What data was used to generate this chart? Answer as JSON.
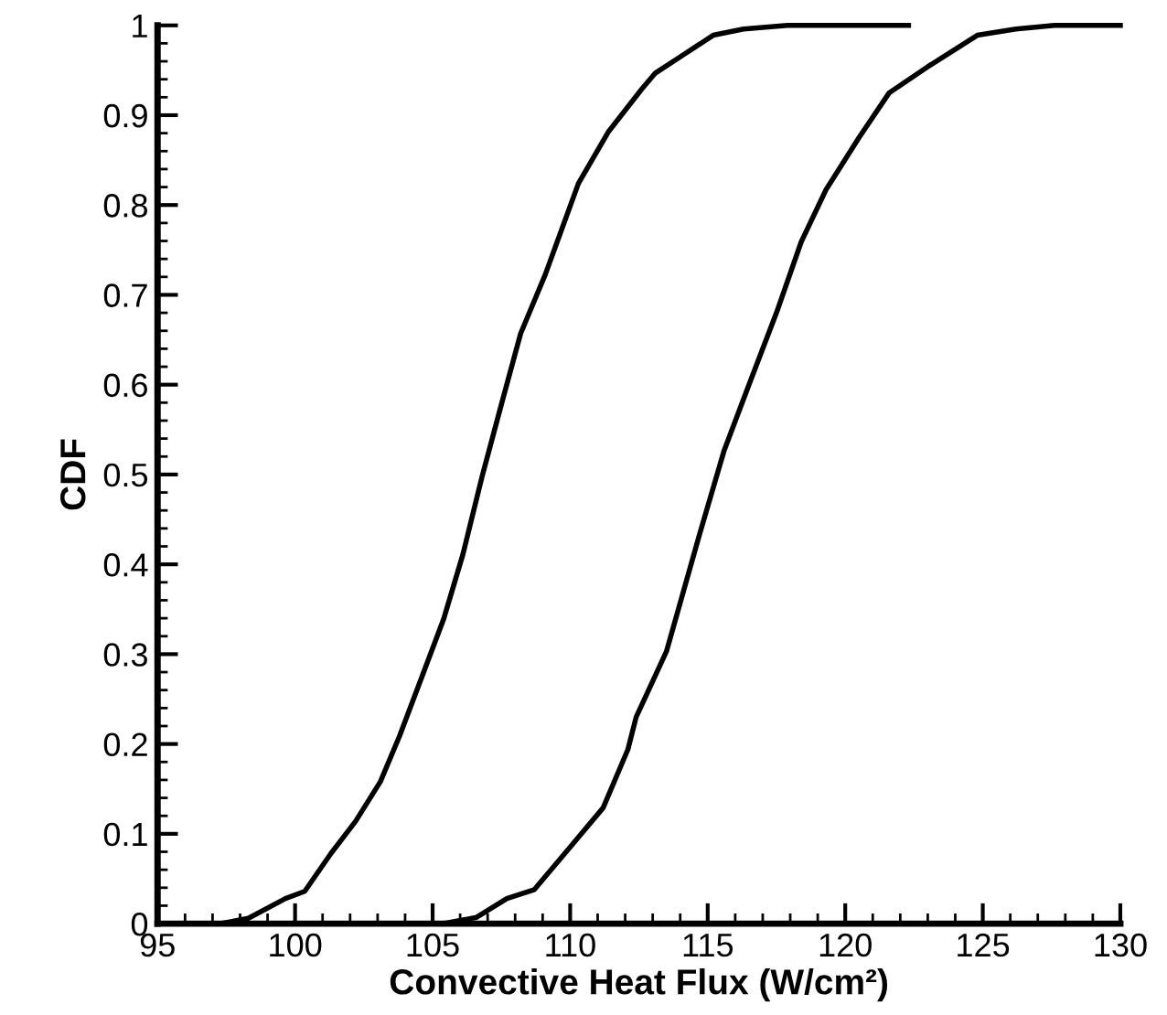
{
  "chart_data": {
    "type": "line",
    "xlabel": "Convective Heat Flux (W/cm²)",
    "ylabel": "CDF",
    "xlim": [
      95,
      130
    ],
    "ylim": [
      0,
      1
    ],
    "xticks": [
      95,
      100,
      105,
      110,
      115,
      120,
      125,
      130
    ],
    "yticks": [
      0,
      0.1,
      0.2,
      0.3,
      0.4,
      0.5,
      0.6,
      0.7,
      0.8,
      0.9,
      1
    ],
    "grid": false,
    "legend": false,
    "marker": "none",
    "line_style": "solid",
    "series": [
      {
        "color": "#000000",
        "x": [
          97.3,
          98.3,
          99.65,
          100.35,
          101.3,
          102.2,
          103.1,
          103.8,
          104.6,
          105.4,
          106.1,
          106.8,
          107.5,
          108.2,
          109.1,
          110.3,
          111.4,
          112.6,
          113.1,
          114.2,
          115.2,
          116.3,
          117.9,
          122.3
        ],
        "values": [
          0,
          0.006,
          0.028,
          0.036,
          0.078,
          0.114,
          0.158,
          0.209,
          0.274,
          0.339,
          0.411,
          0.498,
          0.578,
          0.657,
          0.723,
          0.824,
          0.882,
          0.929,
          0.947,
          0.969,
          0.989,
          0.996,
          1,
          1
        ]
      },
      {
        "color": "#000000",
        "x": [
          105.4,
          106.6,
          107.7,
          108.7,
          109.8,
          111.2,
          112.1,
          112.4,
          113.5,
          114.7,
          115.6,
          116.5,
          117.5,
          118.4,
          119.3,
          120.5,
          121.6,
          123.0,
          124.8,
          126.2,
          127.6,
          130
        ],
        "values": [
          0,
          0.007,
          0.028,
          0.038,
          0.078,
          0.129,
          0.194,
          0.23,
          0.303,
          0.433,
          0.527,
          0.6,
          0.68,
          0.759,
          0.817,
          0.875,
          0.925,
          0.954,
          0.989,
          0.996,
          1,
          1
        ]
      }
    ]
  }
}
